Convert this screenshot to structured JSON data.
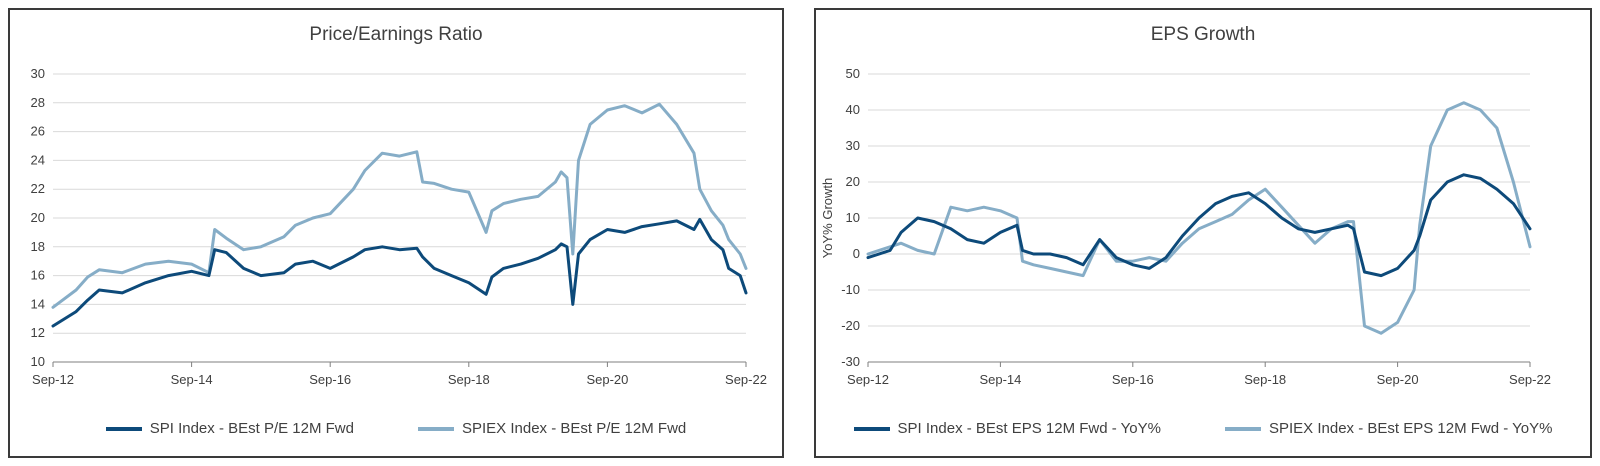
{
  "colors": {
    "dark": "#0d4a7a",
    "light": "#86adc7",
    "grid": "#d9d9d9",
    "axis": "#7f7f7f"
  },
  "chart_data": [
    {
      "type": "line",
      "title": "Price/Earnings Ratio",
      "xlabel": "",
      "ylabel": "",
      "x_ticks": [
        "Sep-12",
        "Sep-14",
        "Sep-16",
        "Sep-18",
        "Sep-20",
        "Sep-22"
      ],
      "xlim": [
        "2012-09",
        "2022-09"
      ],
      "ylim": [
        10,
        30
      ],
      "y_ticks": [
        "10",
        "12",
        "14",
        "16",
        "18",
        "20",
        "22",
        "24",
        "26",
        "28",
        "30"
      ],
      "grid": true,
      "legend_position": "bottom",
      "x": [
        "2012-09",
        "2013-01",
        "2013-03",
        "2013-05",
        "2013-09",
        "2014-01",
        "2014-05",
        "2014-09",
        "2014-12",
        "2015-01",
        "2015-03",
        "2015-06",
        "2015-09",
        "2016-01",
        "2016-03",
        "2016-06",
        "2016-09",
        "2017-01",
        "2017-03",
        "2017-06",
        "2017-09",
        "2017-12",
        "2018-01",
        "2018-03",
        "2018-06",
        "2018-09",
        "2018-12",
        "2019-01",
        "2019-03",
        "2019-06",
        "2019-09",
        "2019-12",
        "2020-01",
        "2020-02",
        "2020-03",
        "2020-04",
        "2020-06",
        "2020-09",
        "2020-12",
        "2021-03",
        "2021-06",
        "2021-09",
        "2021-12",
        "2022-01",
        "2022-03",
        "2022-05",
        "2022-06",
        "2022-08",
        "2022-09"
      ],
      "series": [
        {
          "name": "SPI  Index - BEst P/E 12M Fwd",
          "values": [
            12.5,
            13.5,
            14.3,
            15.0,
            14.8,
            15.5,
            16.0,
            16.3,
            16.0,
            17.8,
            17.6,
            16.5,
            16.0,
            16.2,
            16.8,
            17.0,
            16.5,
            17.3,
            17.8,
            18.0,
            17.8,
            17.9,
            17.3,
            16.5,
            16.0,
            15.5,
            14.7,
            15.9,
            16.5,
            16.8,
            17.2,
            17.8,
            18.2,
            18.0,
            14.0,
            17.5,
            18.5,
            19.2,
            19.0,
            19.4,
            19.6,
            19.8,
            19.2,
            19.9,
            18.5,
            17.8,
            16.5,
            16.0,
            14.8
          ]
        },
        {
          "name": "SPIEX  Index - BEst P/E 12M Fwd",
          "values": [
            13.8,
            15.0,
            15.9,
            16.4,
            16.2,
            16.8,
            17.0,
            16.8,
            16.2,
            19.2,
            18.6,
            17.8,
            18.0,
            18.7,
            19.5,
            20.0,
            20.3,
            22.0,
            23.3,
            24.5,
            24.3,
            24.6,
            22.5,
            22.4,
            22.0,
            21.8,
            19.0,
            20.5,
            21.0,
            21.3,
            21.5,
            22.5,
            23.2,
            22.8,
            17.5,
            24.0,
            26.5,
            27.5,
            27.8,
            27.3,
            27.9,
            26.5,
            24.5,
            22.0,
            20.5,
            19.5,
            18.5,
            17.5,
            16.5
          ]
        }
      ]
    },
    {
      "type": "line",
      "title": "EPS Growth",
      "xlabel": "",
      "ylabel": "YoY% Growth",
      "x_ticks": [
        "Sep-12",
        "Sep-14",
        "Sep-16",
        "Sep-18",
        "Sep-20",
        "Sep-22"
      ],
      "xlim": [
        "2012-09",
        "2022-09"
      ],
      "ylim": [
        -30,
        50
      ],
      "y_ticks": [
        "-30",
        "-20",
        "-10",
        "0",
        "10",
        "20",
        "30",
        "40",
        "50"
      ],
      "grid": true,
      "legend_position": "bottom",
      "x": [
        "2012-09",
        "2013-01",
        "2013-03",
        "2013-06",
        "2013-09",
        "2013-12",
        "2014-03",
        "2014-06",
        "2014-09",
        "2014-12",
        "2015-01",
        "2015-03",
        "2015-06",
        "2015-09",
        "2015-12",
        "2016-03",
        "2016-06",
        "2016-09",
        "2016-12",
        "2017-03",
        "2017-06",
        "2017-09",
        "2017-12",
        "2018-03",
        "2018-06",
        "2018-09",
        "2018-12",
        "2019-03",
        "2019-06",
        "2019-09",
        "2019-12",
        "2020-01",
        "2020-03",
        "2020-06",
        "2020-09",
        "2020-12",
        "2021-01",
        "2021-03",
        "2021-06",
        "2021-09",
        "2021-12",
        "2022-03",
        "2022-06",
        "2022-09"
      ],
      "series": [
        {
          "name": "SPI  Index - BEst EPS 12M Fwd - YoY%",
          "values": [
            -1,
            1,
            6,
            10,
            9,
            7,
            4,
            3,
            6,
            8,
            1,
            0,
            0,
            -1,
            -3,
            4,
            -1,
            -3,
            -4,
            -1,
            5,
            10,
            14,
            16,
            17,
            14,
            10,
            7,
            6,
            7,
            8,
            7,
            -5,
            -6,
            -4,
            1,
            5,
            15,
            20,
            22,
            21,
            18,
            14,
            7
          ]
        },
        {
          "name": "SPIEX  Index - BEst EPS 12M Fwd - YoY%",
          "values": [
            0,
            2,
            3,
            1,
            0,
            13,
            12,
            13,
            12,
            10,
            -2,
            -3,
            -4,
            -5,
            -6,
            4,
            -2,
            -2,
            -1,
            -2,
            3,
            7,
            9,
            11,
            15,
            18,
            13,
            8,
            3,
            7,
            9,
            9,
            -20,
            -22,
            -19,
            -10,
            8,
            30,
            40,
            42,
            40,
            35,
            20,
            2
          ]
        }
      ]
    }
  ]
}
